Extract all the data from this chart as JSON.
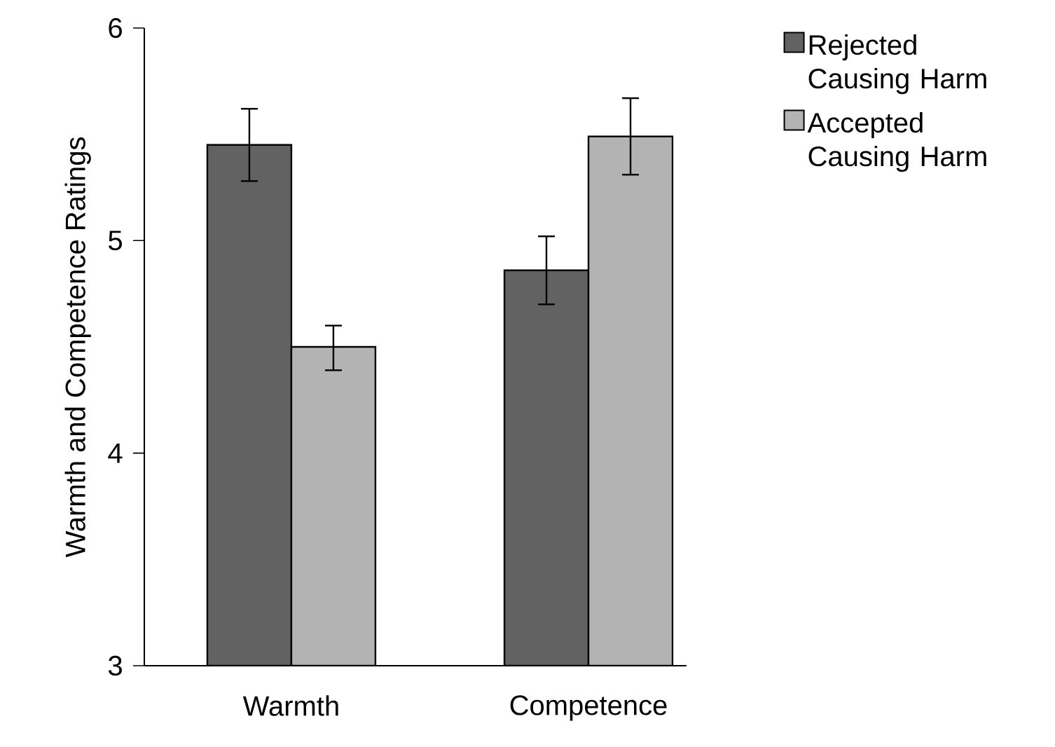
{
  "chart_data": {
    "type": "bar",
    "ylabel": "Warmth and Competence  Ratings",
    "categories": [
      "Warmth",
      "Competence"
    ],
    "ylim": [
      3,
      6
    ],
    "yticks": [
      3,
      4,
      5,
      6
    ],
    "grid": false,
    "legend": "top right",
    "series": [
      {
        "name": "Rejected Causing Harm",
        "color": "#626262",
        "values": [
          5.45,
          4.86
        ],
        "errors": [
          [
            5.28,
            5.62
          ],
          [
            4.7,
            5.02
          ]
        ]
      },
      {
        "name": "Accepted Causing Harm",
        "color": "#b3b3b3",
        "values": [
          4.5,
          5.49
        ],
        "errors": [
          [
            4.39,
            4.6
          ],
          [
            5.31,
            5.67
          ]
        ]
      }
    ]
  }
}
